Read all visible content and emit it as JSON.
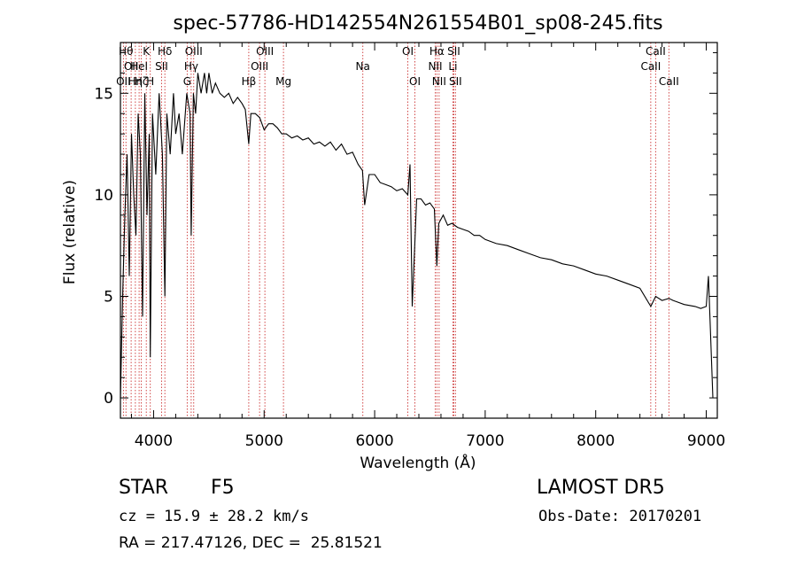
{
  "info": {
    "object_class": "STAR",
    "subclass": "F5",
    "survey": "LAMOST DR5",
    "cz": "cz = 15.9 ± 28.2 km/s",
    "obs_date": "Obs-Date: 20170201",
    "coords": "RA = 217.47126, DEC =  25.81521"
  },
  "chart_data": {
    "type": "line",
    "title": "spec-57786-HD142554N261554B01_sp08-245.fits",
    "xlabel": "Wavelength (Å)",
    "ylabel": "Flux (relative)",
    "xlim": [
      3700,
      9100
    ],
    "ylim": [
      -1,
      17.5
    ],
    "x_ticks": [
      4000,
      5000,
      6000,
      7000,
      8000,
      9000
    ],
    "y_ticks": [
      0,
      5,
      10,
      15
    ],
    "grid": false,
    "line_color": "#000000",
    "marker_color": "#cc3333",
    "series": [
      {
        "x": [
          3700,
          3720,
          3740,
          3760,
          3780,
          3800,
          3820,
          3840,
          3860,
          3880,
          3900,
          3920,
          3940,
          3960,
          3970,
          3990,
          4020,
          4050,
          4080,
          4102,
          4120,
          4150,
          4180,
          4200,
          4230,
          4260,
          4300,
          4330,
          4340,
          4360,
          4380,
          4400,
          4430,
          4460,
          4480,
          4500,
          4530,
          4560,
          4600,
          4640,
          4680,
          4720,
          4760,
          4800,
          4830,
          4861,
          4880,
          4920,
          4960,
          5000,
          5040,
          5080,
          5120,
          5160,
          5200,
          5250,
          5300,
          5350,
          5400,
          5450,
          5500,
          5550,
          5600,
          5650,
          5700,
          5750,
          5800,
          5850,
          5890,
          5910,
          5950,
          6000,
          6050,
          6100,
          6150,
          6200,
          6250,
          6300,
          6320,
          6340,
          6380,
          6420,
          6460,
          6500,
          6540,
          6563,
          6580,
          6620,
          6660,
          6700,
          6750,
          6800,
          6850,
          6900,
          6950,
          7000,
          7100,
          7200,
          7300,
          7400,
          7500,
          7600,
          7700,
          7800,
          7900,
          8000,
          8100,
          8200,
          8300,
          8400,
          8498,
          8542,
          8600,
          8662,
          8700,
          8800,
          8900,
          8950,
          9000,
          9020,
          9040,
          9060
        ],
        "y": [
          0,
          5,
          9,
          12,
          6,
          13,
          10,
          8,
          14,
          12,
          4,
          15,
          9,
          13,
          2,
          14,
          11,
          15,
          12,
          5,
          14,
          12,
          15,
          13,
          14,
          12,
          15,
          14,
          8,
          15,
          14,
          16,
          15,
          16,
          15,
          16,
          15,
          15.5,
          15,
          14.8,
          15,
          14.5,
          14.8,
          14.5,
          14.2,
          12.5,
          14,
          14,
          13.8,
          13.2,
          13.5,
          13.5,
          13.3,
          13,
          13,
          12.8,
          12.9,
          12.7,
          12.8,
          12.5,
          12.6,
          12.4,
          12.6,
          12.2,
          12.5,
          12,
          12.1,
          11.5,
          11.2,
          9.5,
          11,
          11,
          10.6,
          10.5,
          10.4,
          10.2,
          10.3,
          10,
          11.5,
          4.5,
          9.8,
          9.8,
          9.5,
          9.6,
          9.3,
          6.5,
          8.6,
          9.0,
          8.5,
          8.6,
          8.4,
          8.3,
          8.2,
          8.0,
          8.0,
          7.8,
          7.6,
          7.5,
          7.3,
          7.1,
          6.9,
          6.8,
          6.6,
          6.5,
          6.3,
          6.1,
          6.0,
          5.8,
          5.6,
          5.4,
          4.5,
          5.0,
          4.8,
          4.9,
          4.8,
          4.6,
          4.5,
          4.4,
          4.5,
          6.0,
          3.0,
          0.0
        ]
      }
    ],
    "lines": [
      {
        "x": 3727,
        "label": "OII",
        "row": 2
      },
      {
        "x": 3750,
        "label": "Hθ",
        "row": 0
      },
      {
        "x": 3797,
        "label": "OII",
        "row": 1
      },
      {
        "x": 3835,
        "label": "Hη",
        "row": 2
      },
      {
        "x": 3869,
        "label": "HeI",
        "row": 1
      },
      {
        "x": 3889,
        "label": "Hζ",
        "row": 2
      },
      {
        "x": 3934,
        "label": "K",
        "row": 0
      },
      {
        "x": 3970,
        "label": "H",
        "row": 2
      },
      {
        "x": 4072,
        "label": "SII",
        "row": 1
      },
      {
        "x": 4102,
        "label": "Hδ",
        "row": 0
      },
      {
        "x": 4304,
        "label": "G",
        "row": 2
      },
      {
        "x": 4340,
        "label": "Hγ",
        "row": 1
      },
      {
        "x": 4363,
        "label": "OIII",
        "row": 0
      },
      {
        "x": 4861,
        "label": "Hβ",
        "row": 2
      },
      {
        "x": 4959,
        "label": "OIII",
        "row": 1
      },
      {
        "x": 5007,
        "label": "OIII",
        "row": 0
      },
      {
        "x": 5175,
        "label": "Mg",
        "row": 2
      },
      {
        "x": 5893,
        "label": "Na",
        "row": 1
      },
      {
        "x": 6300,
        "label": "OI",
        "row": 0
      },
      {
        "x": 6364,
        "label": "OI",
        "row": 2
      },
      {
        "x": 6548,
        "label": "NII",
        "row": 1
      },
      {
        "x": 6563,
        "label": "Hα",
        "row": 0
      },
      {
        "x": 6583,
        "label": "NII",
        "row": 2
      },
      {
        "x": 6708,
        "label": "Li",
        "row": 1
      },
      {
        "x": 6716,
        "label": "SII",
        "row": 0
      },
      {
        "x": 6731,
        "label": "SII",
        "row": 2
      },
      {
        "x": 8498,
        "label": "CaII",
        "row": 1
      },
      {
        "x": 8542,
        "label": "CaII",
        "row": 0
      },
      {
        "x": 8662,
        "label": "CaII",
        "row": 2
      }
    ]
  }
}
